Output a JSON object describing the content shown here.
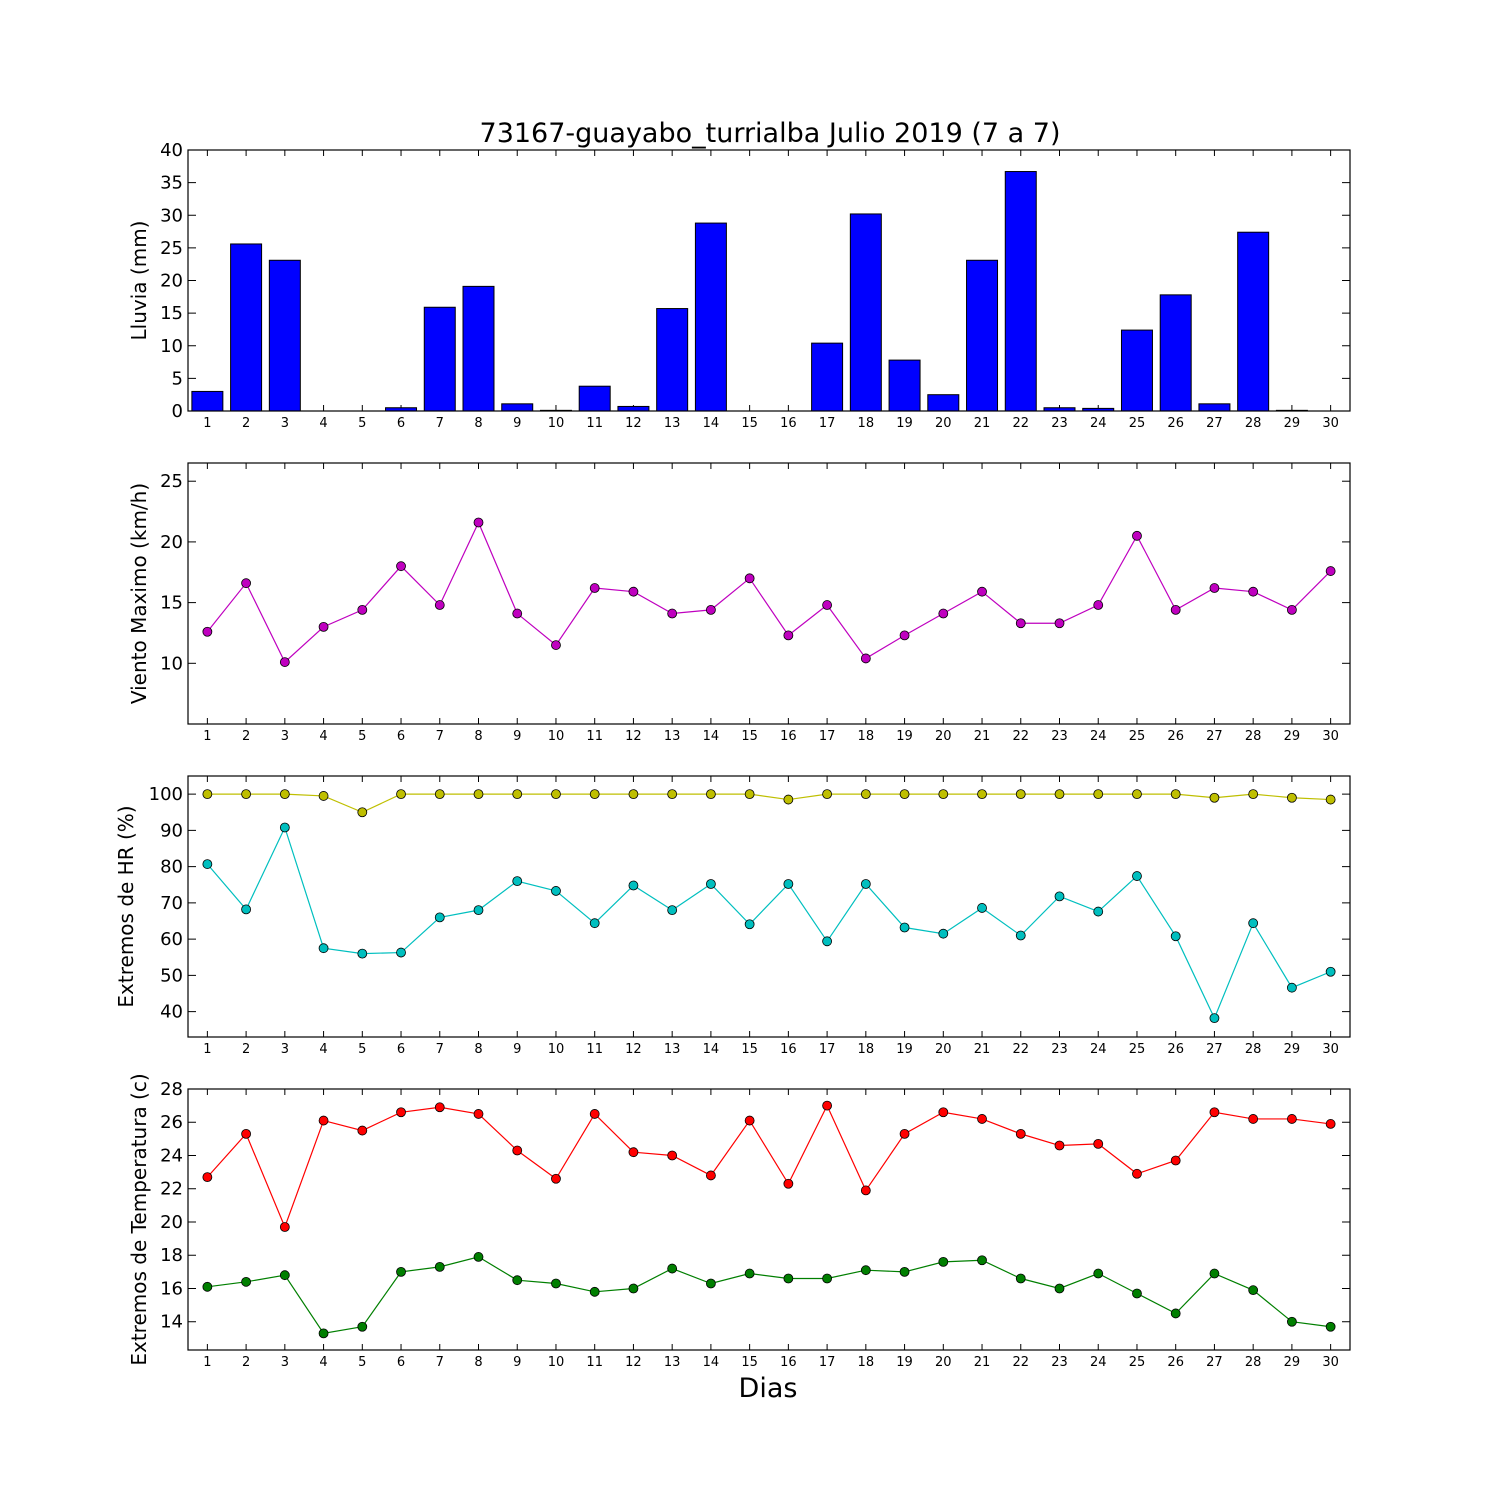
{
  "figure": {
    "title": "73167-guayabo_turrialba Julio 2019  (7 a 7)",
    "xlabel": "Dias"
  },
  "chart_data": [
    {
      "type": "bar",
      "id": "rain",
      "ylabel": "Lluvia (mm)",
      "ylim": [
        0,
        40
      ],
      "yticks": [
        0,
        5,
        10,
        15,
        20,
        25,
        30,
        35,
        40
      ],
      "color": "#0000ff",
      "categories": [
        1,
        2,
        3,
        4,
        5,
        6,
        7,
        8,
        9,
        10,
        11,
        12,
        13,
        14,
        15,
        16,
        17,
        18,
        19,
        20,
        21,
        22,
        23,
        24,
        25,
        26,
        27,
        28,
        29,
        30
      ],
      "values": [
        3.0,
        25.6,
        23.1,
        0.0,
        0.0,
        0.5,
        15.9,
        19.1,
        1.1,
        0.1,
        3.8,
        0.7,
        15.7,
        28.8,
        0.0,
        0.0,
        10.4,
        30.2,
        7.8,
        2.5,
        23.1,
        36.7,
        0.5,
        0.4,
        12.4,
        17.8,
        1.1,
        27.4,
        0.1,
        0.0
      ]
    },
    {
      "type": "line",
      "id": "wind",
      "ylabel": "Viento Maximo (km/h)",
      "ylim": [
        5,
        26.5
      ],
      "yticks": [
        10,
        15,
        20,
        25
      ],
      "x": [
        1,
        2,
        3,
        4,
        5,
        6,
        7,
        8,
        9,
        10,
        11,
        12,
        13,
        14,
        15,
        16,
        17,
        18,
        19,
        20,
        21,
        22,
        23,
        24,
        25,
        26,
        27,
        28,
        29,
        30
      ],
      "series": [
        {
          "color": "#bf00bf",
          "values": [
            12.6,
            16.6,
            10.1,
            13.0,
            14.4,
            18.0,
            14.8,
            21.6,
            14.1,
            11.5,
            16.2,
            15.9,
            14.1,
            14.4,
            17.0,
            12.3,
            14.8,
            10.4,
            12.3,
            14.1,
            15.9,
            13.3,
            13.3,
            14.8,
            20.5,
            14.4,
            16.2,
            15.9,
            14.4,
            17.6
          ]
        }
      ]
    },
    {
      "type": "line",
      "id": "humidity",
      "ylabel": "Extremos de HR (%)",
      "ylim": [
        33,
        105
      ],
      "yticks": [
        40,
        50,
        60,
        70,
        80,
        90,
        100
      ],
      "x": [
        1,
        2,
        3,
        4,
        5,
        6,
        7,
        8,
        9,
        10,
        11,
        12,
        13,
        14,
        15,
        16,
        17,
        18,
        19,
        20,
        21,
        22,
        23,
        24,
        25,
        26,
        27,
        28,
        29,
        30
      ],
      "series": [
        {
          "color": "#bfbf00",
          "values": [
            100,
            100,
            100,
            99.5,
            95,
            100,
            100,
            100,
            100,
            100,
            100,
            100,
            100,
            100,
            100,
            98.5,
            100,
            100,
            100,
            100,
            100,
            100,
            100,
            100,
            100,
            100,
            99,
            100,
            99,
            98.5
          ]
        },
        {
          "color": "#00bfbf",
          "values": [
            80.7,
            68.2,
            90.8,
            57.5,
            56.0,
            56.3,
            66.0,
            68.0,
            76.0,
            73.3,
            64.4,
            74.8,
            68.0,
            75.2,
            64.1,
            75.2,
            59.4,
            75.2,
            63.2,
            61.5,
            68.6,
            61.0,
            71.8,
            67.6,
            77.4,
            60.8,
            38.2,
            64.4,
            46.6,
            51.0
          ]
        }
      ]
    },
    {
      "type": "line",
      "id": "temperature",
      "ylabel": "Extremos de Temperatura (c)",
      "ylim": [
        12.3,
        28
      ],
      "yticks": [
        14,
        16,
        18,
        20,
        22,
        24,
        26,
        28
      ],
      "x": [
        1,
        2,
        3,
        4,
        5,
        6,
        7,
        8,
        9,
        10,
        11,
        12,
        13,
        14,
        15,
        16,
        17,
        18,
        19,
        20,
        21,
        22,
        23,
        24,
        25,
        26,
        27,
        28,
        29,
        30
      ],
      "series": [
        {
          "color": "#ff0000",
          "values": [
            22.7,
            25.3,
            19.7,
            26.1,
            25.5,
            26.6,
            26.9,
            26.5,
            24.3,
            22.6,
            26.5,
            24.2,
            24.0,
            22.8,
            26.1,
            22.3,
            27.0,
            21.9,
            25.3,
            26.6,
            26.2,
            25.3,
            24.6,
            24.7,
            22.9,
            23.7,
            26.6,
            26.2,
            26.2,
            25.9
          ]
        },
        {
          "color": "#007f00",
          "values": [
            16.1,
            16.4,
            16.8,
            13.3,
            13.7,
            17.0,
            17.3,
            17.9,
            16.5,
            16.3,
            15.8,
            16.0,
            17.2,
            16.3,
            16.9,
            16.6,
            16.6,
            17.1,
            17.0,
            17.6,
            17.7,
            16.6,
            16.0,
            16.9,
            15.7,
            14.5,
            16.9,
            15.9,
            14.0,
            13.7
          ]
        }
      ]
    }
  ]
}
